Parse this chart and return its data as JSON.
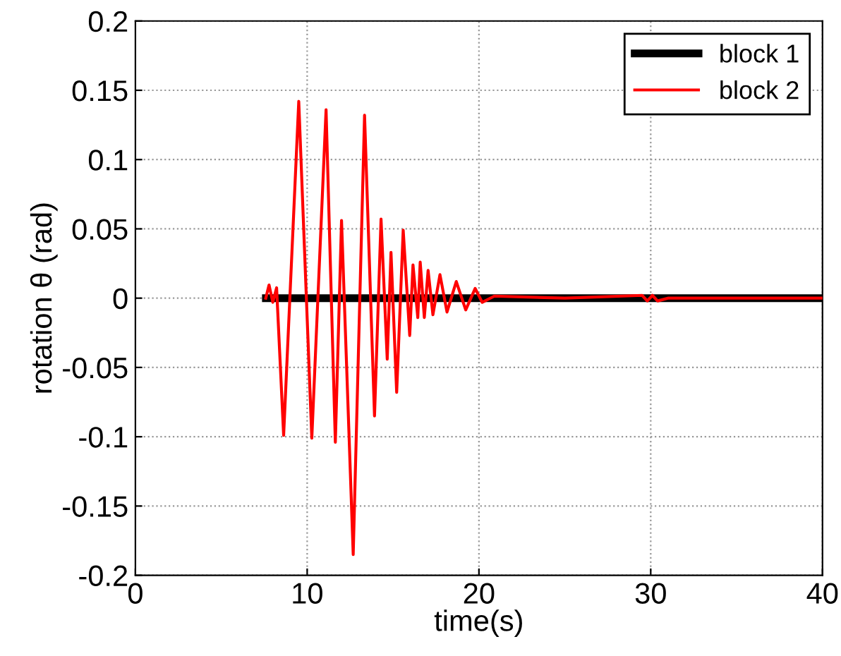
{
  "chart_data": {
    "type": "line",
    "xlabel": "time(s)",
    "ylabel": "rotation θ (rad)",
    "xlim": [
      0,
      40
    ],
    "xticks": [
      0,
      10,
      20,
      30,
      40
    ],
    "ylim": [
      -0.2,
      0.2
    ],
    "yticks": [
      -0.2,
      -0.15,
      -0.1,
      -0.05,
      0,
      0.05,
      0.1,
      0.15,
      0.2
    ],
    "grid": true,
    "legend": "top right",
    "line_style": "solid",
    "marker": "none",
    "series": [
      {
        "name": "block 1",
        "color": "#000000",
        "x": [
          7.6,
          10,
          15,
          20,
          25,
          30,
          35,
          40
        ],
        "values": [
          0,
          0,
          0,
          0,
          0,
          0,
          0,
          0
        ]
      },
      {
        "name": "block 2",
        "color": "#ff0000",
        "x": [
          7.59,
          7.78,
          8.0,
          8.22,
          8.63,
          9.51,
          10.27,
          11.1,
          11.64,
          12.0,
          12.68,
          13.34,
          13.92,
          14.3,
          14.66,
          14.88,
          15.21,
          15.59,
          15.97,
          16.16,
          16.44,
          16.58,
          16.82,
          17.04,
          17.32,
          17.73,
          18.14,
          18.68,
          19.23,
          19.78,
          20.19,
          20.9,
          25,
          29.5,
          29.8,
          30.1,
          30.4,
          31,
          35,
          40
        ],
        "values": [
          0,
          0.0095,
          -0.003,
          0.0075,
          -0.099,
          0.142,
          -0.101,
          0.136,
          -0.104,
          0.056,
          -0.185,
          0.132,
          -0.085,
          0.057,
          -0.044,
          0.033,
          -0.068,
          0.049,
          -0.027,
          0.024,
          -0.014,
          0.026,
          -0.014,
          0.02,
          -0.012,
          0.017,
          -0.01,
          0.012,
          -0.0085,
          0.007,
          -0.003,
          0.0015,
          0,
          0.002,
          -0.002,
          0.002,
          -0.002,
          0,
          0,
          0
        ]
      }
    ]
  }
}
